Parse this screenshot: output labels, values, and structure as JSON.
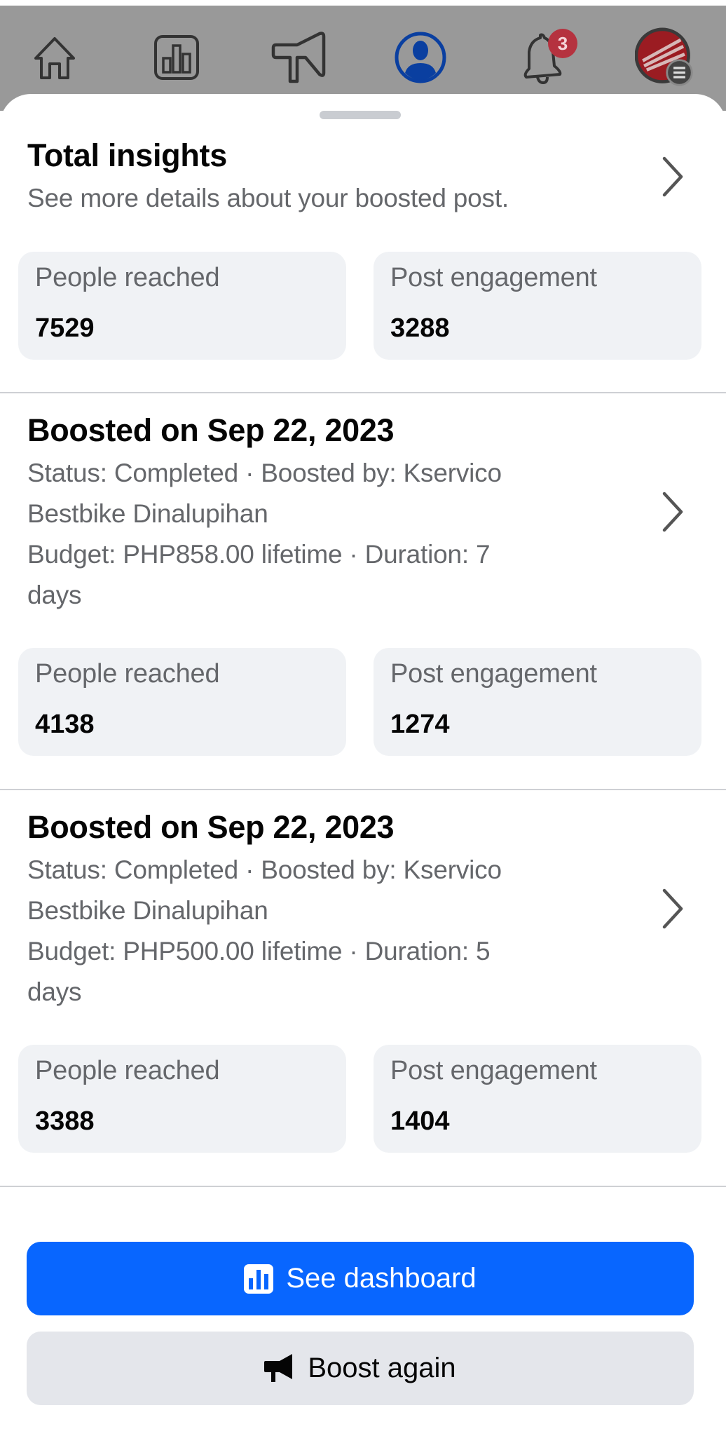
{
  "nav": {
    "items": [
      {
        "icon": "home-icon"
      },
      {
        "icon": "bar-chart-icon"
      },
      {
        "icon": "megaphone-icon"
      },
      {
        "icon": "profile-icon",
        "active": true
      },
      {
        "icon": "bell-icon",
        "badge": "3"
      },
      {
        "icon": "page-avatar-menu-icon"
      }
    ]
  },
  "total": {
    "title": "Total insights",
    "subtitle": "See more details about your boosted post.",
    "people_reached_label": "People reached",
    "people_reached": "7529",
    "post_engagement_label": "Post engagement",
    "post_engagement": "3288"
  },
  "boosts": [
    {
      "title": "Boosted on Sep 22, 2023",
      "line1": "Status: Completed · Boosted by: Kservico",
      "line2": "Bestbike Dinalupihan",
      "line3": "Budget: PHP858.00 lifetime · Duration: 7",
      "line4": "days",
      "people_reached_label": "People reached",
      "people_reached": "4138",
      "post_engagement_label": "Post engagement",
      "post_engagement": "1274"
    },
    {
      "title": "Boosted on Sep 22, 2023",
      "line1": "Status: Completed · Boosted by: Kservico",
      "line2": "Bestbike Dinalupihan",
      "line3": "Budget: PHP500.00 lifetime · Duration: 5",
      "line4": "days",
      "people_reached_label": "People reached",
      "people_reached": "3388",
      "post_engagement_label": "Post engagement",
      "post_engagement": "1404"
    }
  ],
  "actions": {
    "see_dashboard": "See dashboard",
    "boost_again": "Boost again"
  },
  "colors": {
    "primary": "#0866ff",
    "badge": "#b5323f",
    "active_icon": "#0a3fa0"
  }
}
